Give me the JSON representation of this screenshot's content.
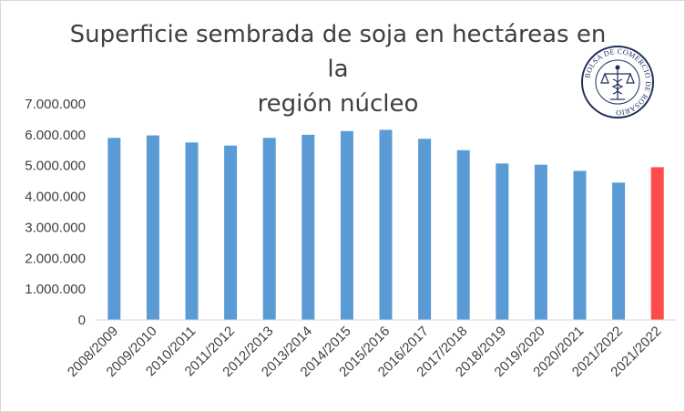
{
  "title": {
    "line1": "Superficie sembrada de soja en hectáreas en la",
    "line2": "región núcleo"
  },
  "logo": {
    "name": "bcr-seal",
    "text": "BOLSA DE COMERCIO DE ROSARIO"
  },
  "chart_data": {
    "type": "bar",
    "title": "Superficie sembrada de soja en hectáreas en la región núcleo",
    "categories": [
      "2008/2009",
      "2009/2010",
      "2010/2011",
      "2011/2012",
      "2012/2013",
      "2013/2014",
      "2014/2015",
      "2015/2016",
      "2016/2017",
      "2017/2018",
      "2018/2019",
      "2019/2020",
      "2020/2021",
      "2021/2022",
      "2021/2022"
    ],
    "values": [
      5900000,
      5980000,
      5750000,
      5650000,
      5900000,
      6000000,
      6120000,
      6160000,
      5870000,
      5500000,
      5070000,
      5030000,
      4830000,
      4450000,
      4950000
    ],
    "bar_colors": [
      "#5b9bd5",
      "#5b9bd5",
      "#5b9bd5",
      "#5b9bd5",
      "#5b9bd5",
      "#5b9bd5",
      "#5b9bd5",
      "#5b9bd5",
      "#5b9bd5",
      "#5b9bd5",
      "#5b9bd5",
      "#5b9bd5",
      "#5b9bd5",
      "#5b9bd5",
      "#ff4b4b"
    ],
    "yticks": [
      "0",
      "1.000.000",
      "2.000.000",
      "3.000.000",
      "4.000.000",
      "5.000.000",
      "6.000.000",
      "7.000.000"
    ],
    "ylim": [
      0,
      7000000
    ],
    "grid": false,
    "legend": false
  }
}
